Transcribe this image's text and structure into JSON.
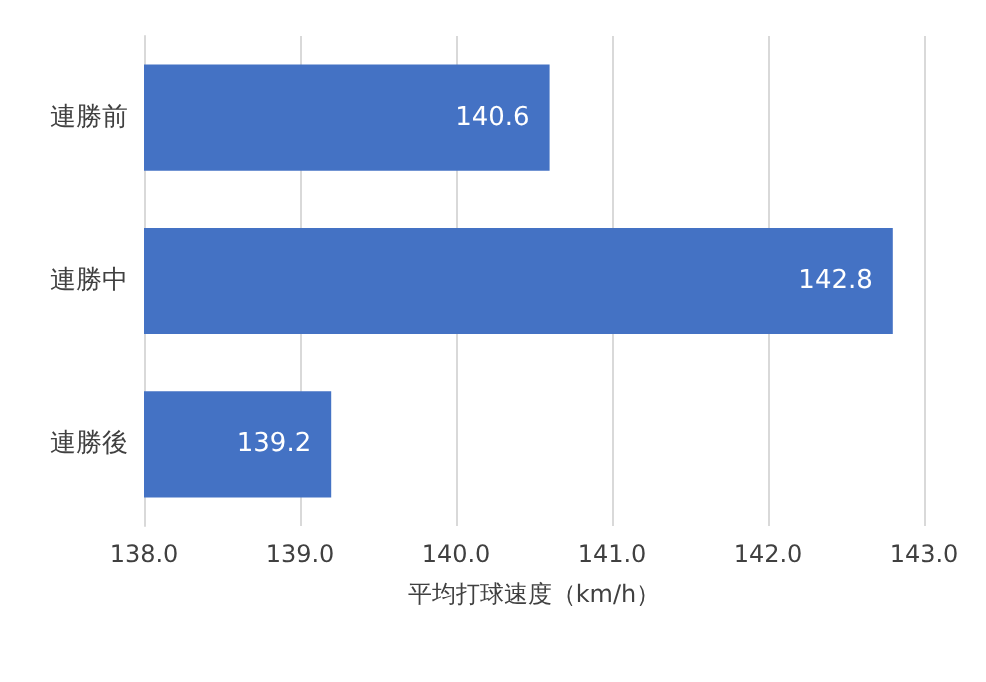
{
  "chart_data": {
    "type": "bar",
    "orientation": "horizontal",
    "categories": [
      "連勝前",
      "連勝中",
      "連勝後"
    ],
    "values": [
      140.6,
      142.8,
      139.2
    ],
    "color": "#4472c4",
    "xlabel": "平均打球速度（km/h）",
    "xlim": [
      138,
      143
    ],
    "xticks": [
      {
        "value": 138,
        "label": "138.0"
      },
      {
        "value": 139,
        "label": "139.0"
      },
      {
        "value": 140,
        "label": "140.0"
      },
      {
        "value": 141,
        "label": "141.0"
      },
      {
        "value": 142,
        "label": "142.0"
      },
      {
        "value": 143,
        "label": "143.0"
      }
    ],
    "grid": "x",
    "data_labels": true
  }
}
